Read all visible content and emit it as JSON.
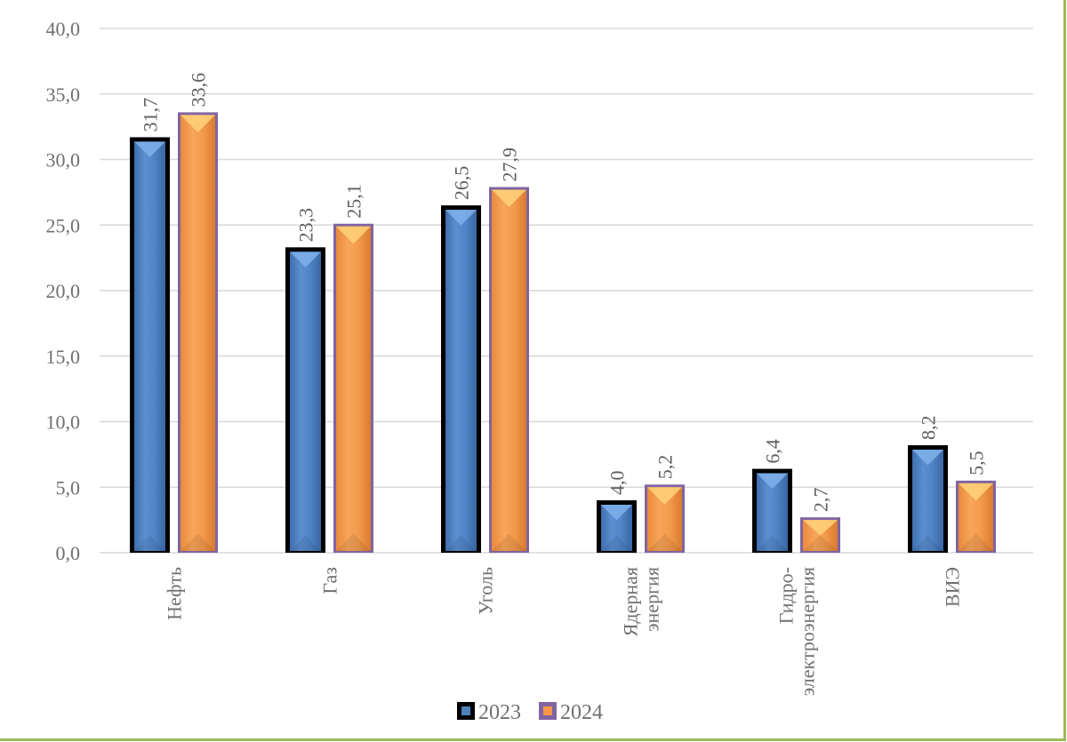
{
  "chart_data": {
    "type": "bar",
    "title": "",
    "xlabel": "",
    "ylabel": "",
    "ylim": [
      0,
      40
    ],
    "yticks": [
      0,
      5,
      10,
      15,
      20,
      25,
      30,
      35,
      40
    ],
    "ytick_labels": [
      "0,0",
      "5,0",
      "10,0",
      "15,0",
      "20,0",
      "25,0",
      "30,0",
      "35,0",
      "40,0"
    ],
    "grid": true,
    "legend_position": "bottom",
    "categories": [
      [
        "Нефть"
      ],
      [
        "Газ"
      ],
      [
        "Уголь"
      ],
      [
        "Ядерная",
        "энергия"
      ],
      [
        "Гидро-",
        "электроэнергия"
      ],
      [
        "ВИЭ"
      ]
    ],
    "series": [
      {
        "name": "2023",
        "color": "#4f81bd",
        "border_color": "#000000",
        "values": [
          31.7,
          23.3,
          26.5,
          4.0,
          6.4,
          8.2
        ],
        "labels": [
          "31,7",
          "23,3",
          "26,5",
          "4,0",
          "6,4",
          "8,2"
        ]
      },
      {
        "name": "2024",
        "color": "#f79646",
        "border_color": "#8064a2",
        "values": [
          33.6,
          25.1,
          27.9,
          5.2,
          2.7,
          5.5
        ],
        "labels": [
          "33,6",
          "25,1",
          "27,9",
          "5,2",
          "2,7",
          "5,5"
        ]
      }
    ]
  },
  "colors": {
    "frame_border": "#9bbb59",
    "gridline": "#d9d9d9",
    "text": "#6f6f6f"
  }
}
